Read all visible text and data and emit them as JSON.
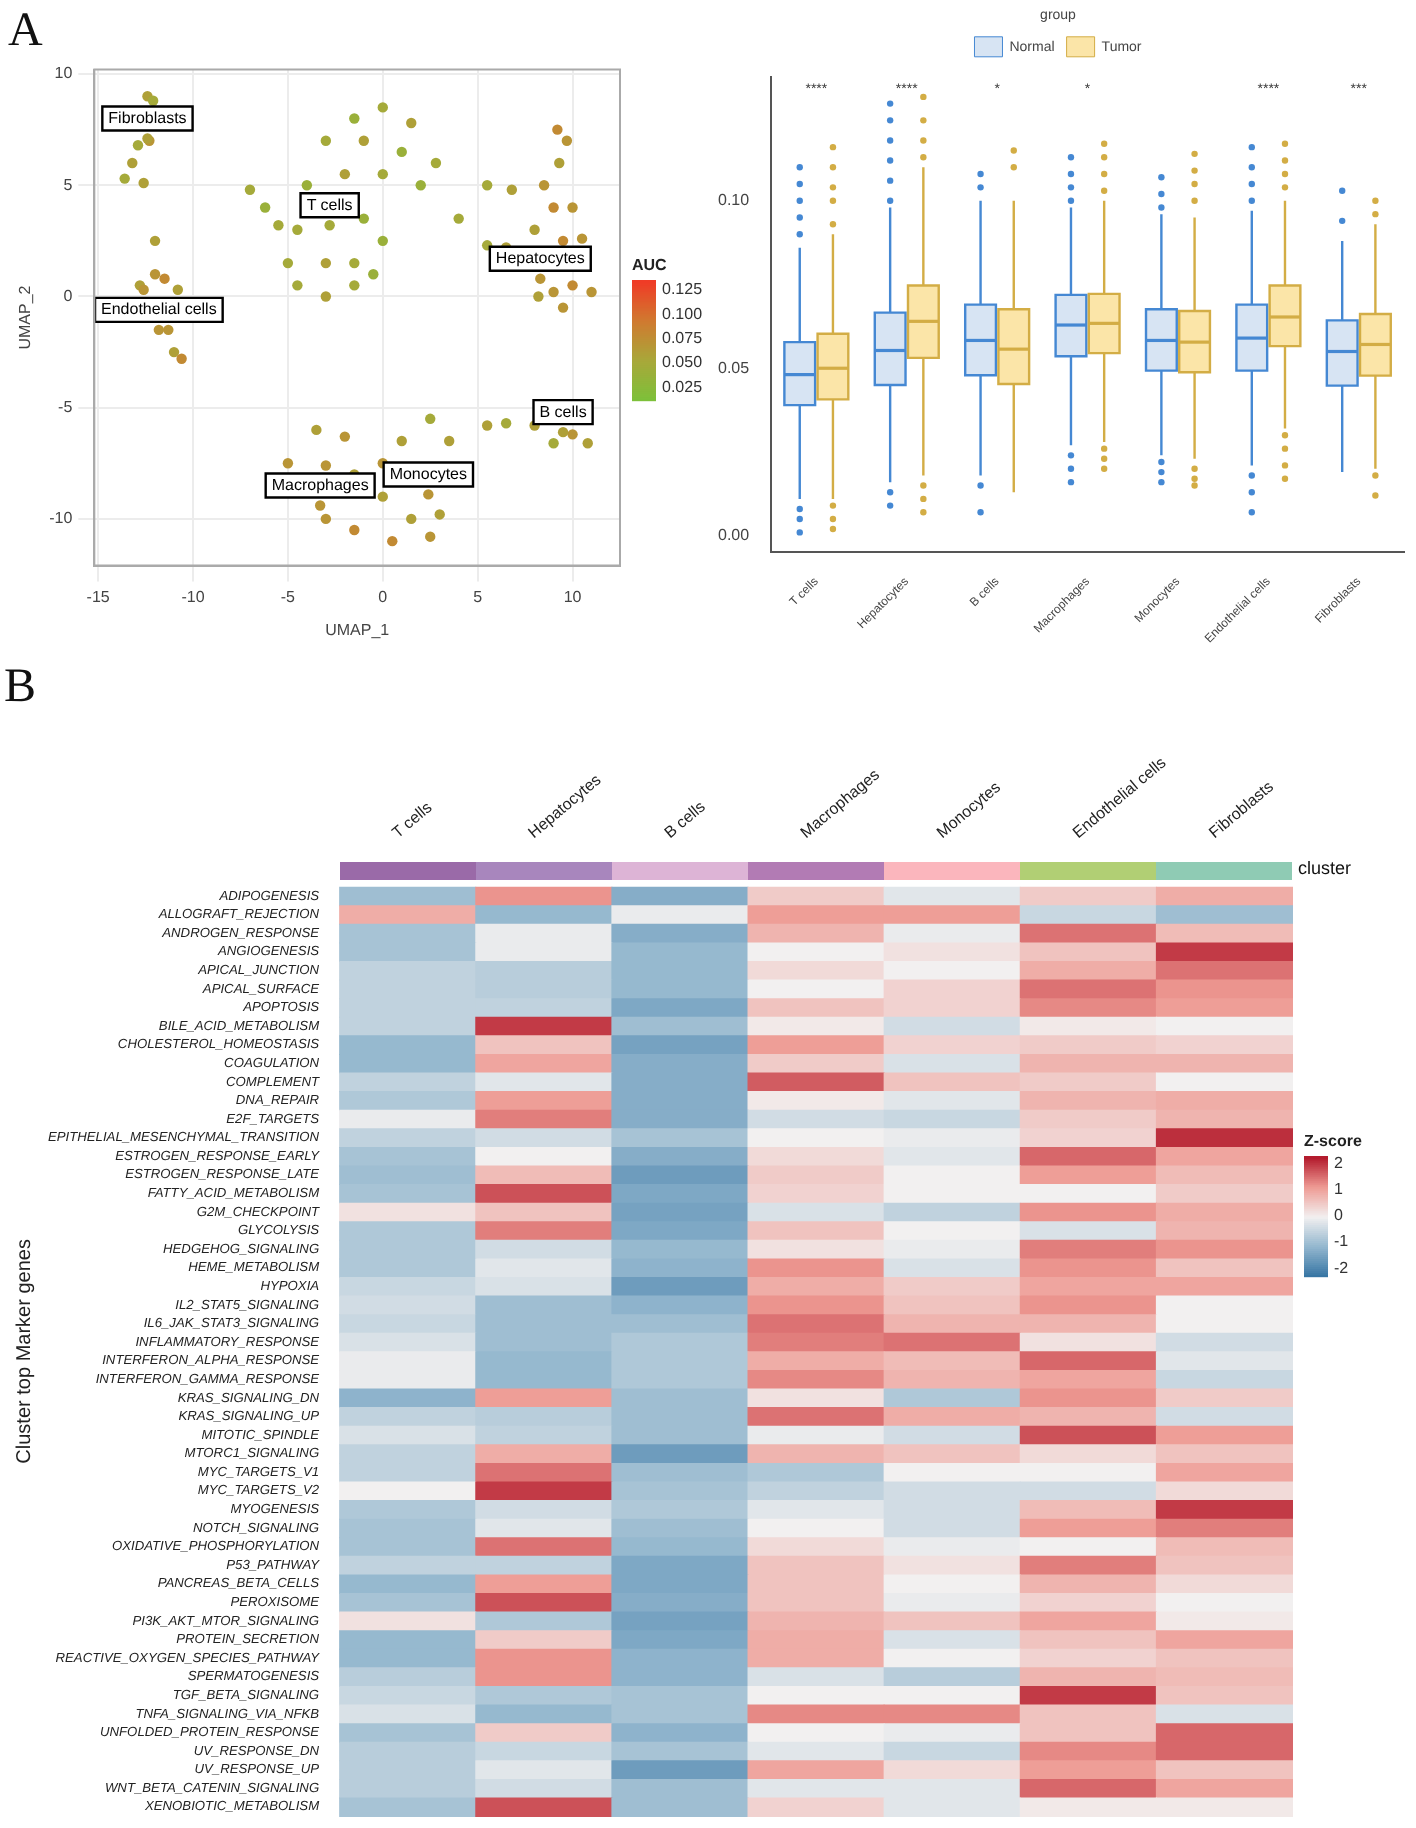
{
  "chart_data": [
    {
      "type": "scatter",
      "title": "A",
      "xlabel": "UMAP_1",
      "ylabel": "UMAP_2",
      "clabel": "AUC",
      "marker": "circle",
      "grid": true,
      "xlim": [
        -15.2,
        12.5
      ],
      "ylim": [
        -12.1,
        10.2
      ],
      "xticks": [
        -15,
        -10,
        -5,
        0,
        5,
        10
      ],
      "yticks": [
        -10,
        -5,
        0,
        5,
        10
      ],
      "clim": [
        0.012,
        0.135
      ],
      "cticks": [
        0.025,
        {
          "value": 0.05,
          "label": "0.050"
        },
        0.075,
        {
          "value": 0.1,
          "label": "0.100"
        },
        0.125
      ],
      "x": [
        -12.4,
        -12.1,
        -12.9,
        -13.2,
        -13.6,
        -12.6,
        -12.3,
        -12,
        -12,
        -12.8,
        -11.5,
        -10.8,
        -12.6,
        -11.3,
        -11,
        -10.6,
        0,
        -1.5,
        1.5,
        -3,
        -1,
        1,
        2.8,
        -4,
        -2,
        0,
        2,
        -4.5,
        -1,
        -5,
        -3,
        -1.5,
        0,
        -4.5,
        -3,
        -1.5,
        -0.5,
        -7,
        -6.2,
        -5.5,
        9.2,
        9.7,
        9.3,
        8.5,
        9,
        10,
        8,
        9.5,
        10.5,
        9.0,
        10,
        11,
        8.2,
        9.5,
        4,
        5.5,
        6.8,
        5.5,
        6.5,
        8,
        10,
        10.8,
        9,
        5.5,
        6.5,
        -5,
        -3.5,
        -2,
        -3,
        -1.5,
        -3,
        -1.5,
        0,
        0,
        1,
        2.5,
        3.5,
        1.5,
        2.5,
        3,
        0.5,
        -12.4,
        -11.8,
        -2.8,
        8.3,
        9.5,
        -3.3,
        2.4
      ],
      "values": [
        9,
        8.8,
        6.8,
        6,
        5.3,
        5.1,
        7,
        2.5,
        1,
        0.5,
        0.8,
        0.3,
        0.3,
        -1.5,
        -2.5,
        -2.8,
        8.5,
        8,
        7.8,
        7,
        7,
        6.5,
        6,
        5,
        5.5,
        5.5,
        5,
        3,
        3.5,
        1.5,
        1.5,
        1.5,
        2.5,
        0.5,
        0,
        0.5,
        1,
        4.8,
        4,
        3.2,
        7.5,
        7,
        6,
        5,
        4,
        4,
        3,
        2.5,
        2.6,
        0.2,
        0.5,
        0.2,
        0,
        -0.5,
        3.5,
        5,
        4.8,
        2.3,
        2.2,
        -5.8,
        -6.2,
        -6.6,
        -6.6,
        -5.8,
        -5.7,
        -7.5,
        -6,
        -6.3,
        -7.6,
        -8,
        -10,
        -10.5,
        -9,
        -7.5,
        -6.5,
        -5.5,
        -6.5,
        -10,
        -10.8,
        -9.8,
        -11,
        7.1,
        -1.5,
        3.2,
        0.8,
        -6.1,
        -9.4,
        -8.9
      ],
      "cvalues": [
        0.06,
        0.05,
        0.05,
        0.06,
        0.05,
        0.06,
        0.07,
        0.06,
        0.07,
        0.06,
        0.08,
        0.06,
        0.07,
        0.07,
        0.06,
        0.08,
        0.05,
        0.04,
        0.06,
        0.05,
        0.06,
        0.04,
        0.05,
        0.04,
        0.06,
        0.05,
        0.04,
        0.05,
        0.04,
        0.05,
        0.06,
        0.05,
        0.04,
        0.05,
        0.06,
        0.05,
        0.04,
        0.05,
        0.04,
        0.05,
        0.08,
        0.07,
        0.06,
        0.07,
        0.08,
        0.07,
        0.06,
        0.08,
        0.07,
        0.07,
        0.08,
        0.07,
        0.06,
        0.07,
        0.05,
        0.05,
        0.06,
        0.05,
        0.06,
        0.06,
        0.07,
        0.06,
        0.05,
        0.06,
        0.05,
        0.07,
        0.06,
        0.07,
        0.07,
        0.06,
        0.07,
        0.08,
        0.06,
        0.07,
        0.06,
        0.05,
        0.06,
        0.06,
        0.07,
        0.06,
        0.08,
        0.06,
        0.07,
        0.05,
        0.07,
        0.06,
        0.07,
        0.07
      ],
      "annotations": [
        {
          "text": "Fibroblasts",
          "x": -12.4,
          "y": 7.1
        },
        {
          "text": "Endothelial cells",
          "x": -11.8,
          "y": -1.5
        },
        {
          "text": "T cells",
          "x": -2.8,
          "y": 3.2
        },
        {
          "text": "Hepatocytes",
          "x": 8.3,
          "y": 0.8
        },
        {
          "text": "B cells",
          "x": 9.5,
          "y": -6.1
        },
        {
          "text": "Macrophages",
          "x": -3.3,
          "y": -9.4
        },
        {
          "text": "Monocytes",
          "x": 2.4,
          "y": -8.9
        }
      ]
    },
    {
      "type": "box",
      "legend": "top",
      "legend_title": "group",
      "categories": [
        "T cells",
        "Hepatocytes",
        "B cells",
        "Macrophages",
        "Monocytes",
        "Endothelial cells",
        "Fibroblasts"
      ],
      "ylim": [
        -0.005,
        0.137
      ],
      "yticks": [
        {
          "value": 0,
          "label": "0.00"
        },
        {
          "value": 0.05,
          "label": "0.05"
        },
        {
          "value": 0.1,
          "label": "0.10"
        }
      ],
      "series": [
        {
          "name": "Normal",
          "color": "#d7e4f3",
          "boxes": [
            {
              "low": 0.011,
              "q1": 0.039,
              "median": 0.0481,
              "q3": 0.0578,
              "high": 0.086,
              "outliers": [
                0.09,
                0.095,
                0.1,
                0.105,
                0.11,
                0.008,
                0.005,
                0.001
              ]
            },
            {
              "low": 0.016,
              "q1": 0.045,
              "median": 0.0553,
              "q3": 0.0666,
              "high": 0.098,
              "outliers": [
                0.1,
                0.106,
                0.112,
                0.118,
                0.124,
                0.129,
                0.013,
                0.009
              ]
            },
            {
              "low": 0.018,
              "q1": 0.0479,
              "median": 0.0583,
              "q3": 0.069,
              "high": 0.1,
              "outliers": [
                0.104,
                0.108,
                0.015,
                0.007
              ]
            },
            {
              "low": 0.027,
              "q1": 0.0536,
              "median": 0.0629,
              "q3": 0.0719,
              "high": 0.098,
              "outliers": [
                0.1,
                0.104,
                0.108,
                0.113,
                0.024,
                0.02,
                0.016
              ]
            },
            {
              "low": 0.024,
              "q1": 0.0493,
              "median": 0.0583,
              "q3": 0.0676,
              "high": 0.096,
              "outliers": [
                0.098,
                0.102,
                0.107,
                0.022,
                0.019,
                0.016
              ]
            },
            {
              "low": 0.021,
              "q1": 0.0493,
              "median": 0.059,
              "q3": 0.069,
              "high": 0.097,
              "outliers": [
                0.1,
                0.105,
                0.11,
                0.116,
                0.018,
                0.013,
                0.007
              ]
            },
            {
              "low": 0.019,
              "q1": 0.0448,
              "median": 0.055,
              "q3": 0.0643,
              "high": 0.088,
              "outliers": [
                0.094,
                0.103
              ]
            }
          ]
        },
        {
          "name": "Tumor",
          "color": "#fbe5a8",
          "boxes": [
            {
              "low": 0.011,
              "q1": 0.0407,
              "median": 0.05,
              "q3": 0.0603,
              "high": 0.09,
              "outliers": [
                0.093,
                0.1,
                0.104,
                0.11,
                0.116,
                0.009,
                0.005,
                0.002
              ]
            },
            {
              "low": 0.018,
              "q1": 0.0531,
              "median": 0.064,
              "q3": 0.0747,
              "high": 0.11,
              "outliers": [
                0.113,
                0.118,
                0.124,
                0.131,
                0.015,
                0.011,
                0.007
              ]
            },
            {
              "low": 0.013,
              "q1": 0.0453,
              "median": 0.0557,
              "q3": 0.0676,
              "high": 0.1,
              "outliers": [
                0.11,
                0.115
              ]
            },
            {
              "low": 0.028,
              "q1": 0.0545,
              "median": 0.0634,
              "q3": 0.0722,
              "high": 0.1,
              "outliers": [
                0.103,
                0.108,
                0.113,
                0.117,
                0.026,
                0.023,
                0.02
              ]
            },
            {
              "low": 0.023,
              "q1": 0.0488,
              "median": 0.0578,
              "q3": 0.0671,
              "high": 0.095,
              "outliers": [
                0.1,
                0.105,
                0.109,
                0.114,
                0.02,
                0.017,
                0.015
              ]
            },
            {
              "low": 0.032,
              "q1": 0.0566,
              "median": 0.0653,
              "q3": 0.0747,
              "high": 0.1,
              "outliers": [
                0.104,
                0.108,
                0.112,
                0.117,
                0.03,
                0.026,
                0.021,
                0.017
              ]
            },
            {
              "low": 0.02,
              "q1": 0.0478,
              "median": 0.0571,
              "q3": 0.0662,
              "high": 0.093,
              "outliers": [
                0.096,
                0.1,
                0.018,
                0.012
              ]
            }
          ]
        }
      ],
      "annotations": [
        "****",
        "****",
        "*",
        "*",
        "****",
        "***"
      ]
    },
    {
      "type": "heatmap",
      "title": "B",
      "ylabel": "Cluster top Marker genes",
      "clabel": "Z-score",
      "annotations": [
        "cluster"
      ],
      "clim": [
        -2.3,
        2.3
      ],
      "cticks": [
        -2,
        -1,
        0,
        1,
        2
      ],
      "categories": [
        "T cells",
        "Hepatocytes",
        "B cells",
        "Macrophages",
        "Monocytes",
        "Endothelial cells",
        "Fibroblasts"
      ],
      "y_categories": [
        "ADIPOGENESIS",
        "ALLOGRAFT_REJECTION",
        "ANDROGEN_RESPONSE",
        "ANGIOGENESIS",
        "APICAL_JUNCTION",
        "APICAL_SURFACE",
        "APOPTOSIS",
        "BILE_ACID_METABOLISM",
        "CHOLESTEROL_HOMEOSTASIS",
        "COAGULATION",
        "COMPLEMENT",
        "DNA_REPAIR",
        "E2F_TARGETS",
        "EPITHELIAL_MESENCHYMAL_TRANSITION",
        "ESTROGEN_RESPONSE_EARLY",
        "ESTROGEN_RESPONSE_LATE",
        "FATTY_ACID_METABOLISM",
        "G2M_CHECKPOINT",
        "GLYCOLYSIS",
        "HEDGEHOG_SIGNALING",
        "HEME_METABOLISM",
        "HYPOXIA",
        "IL2_STAT5_SIGNALING",
        "IL6_JAK_STAT3_SIGNALING",
        "INFLAMMATORY_RESPONSE",
        "INTERFERON_ALPHA_RESPONSE",
        "INTERFERON_GAMMA_RESPONSE",
        "KRAS_SIGNALING_DN",
        "KRAS_SIGNALING_UP",
        "MITOTIC_SPINDLE",
        "MTORC1_SIGNALING",
        "MYC_TARGETS_V1",
        "MYC_TARGETS_V2",
        "MYOGENESIS",
        "NOTCH_SIGNALING",
        "OXIDATIVE_PHOSPHORYLATION",
        "P53_PATHWAY",
        "PANCREAS_BETA_CELLS",
        "PEROXISOME",
        "PI3K_AKT_MTOR_SIGNALING",
        "PROTEIN_SECRETION",
        "REACTIVE_OXYGEN_SPECIES_PATHWAY",
        "SPERMATOGENESIS",
        "TGF_BETA_SIGNALING",
        "TNFA_SIGNALING_VIA_NFKB",
        "UNFOLDED_PROTEIN_RESPONSE",
        "UV_RESPONSE_DN",
        "UV_RESPONSE_UP",
        "WNT_BETA_CATENIN_SIGNALING",
        "XENOBIOTIC_METABOLISM"
      ],
      "cells": [
        [
          -1.0,
          1.2,
          -1.3,
          0.5,
          -0.2,
          0.5,
          0.9
        ],
        [
          0.9,
          -1.1,
          -0.1,
          1.1,
          1.1,
          -0.5,
          -1.0
        ],
        [
          -0.9,
          -0.1,
          -1.3,
          0.8,
          -0.1,
          1.5,
          0.7
        ],
        [
          -0.9,
          -0.1,
          -1.1,
          0.0,
          0.2,
          0.6,
          2.0
        ],
        [
          -0.6,
          -0.7,
          -1.1,
          0.3,
          0.0,
          0.9,
          1.5
        ],
        [
          -0.6,
          -0.7,
          -1.1,
          0.0,
          0.4,
          1.5,
          1.2
        ],
        [
          -0.6,
          -0.6,
          -1.4,
          0.6,
          0.4,
          1.3,
          1.1
        ],
        [
          -0.6,
          2.0,
          -1.0,
          0.1,
          -0.4,
          0.1,
          0.0
        ],
        [
          -1.1,
          0.6,
          -1.5,
          1.1,
          0.4,
          0.5,
          0.4
        ],
        [
          -1.1,
          1.0,
          -1.3,
          0.5,
          -0.3,
          0.8,
          0.8
        ],
        [
          -0.6,
          -0.2,
          -1.3,
          1.7,
          0.6,
          0.5,
          0.0
        ],
        [
          -0.8,
          1.1,
          -1.3,
          0.1,
          -0.2,
          0.8,
          0.9
        ],
        [
          -0.1,
          1.4,
          -1.3,
          -0.4,
          -0.5,
          0.5,
          0.8
        ],
        [
          -0.6,
          -0.4,
          -0.9,
          0.0,
          -0.1,
          0.4,
          2.1
        ],
        [
          -0.9,
          0.0,
          -1.3,
          0.3,
          -0.2,
          1.6,
          1.0
        ],
        [
          -1.0,
          0.7,
          -1.6,
          0.5,
          0.0,
          1.1,
          0.7
        ],
        [
          -0.9,
          1.8,
          -1.4,
          0.4,
          0.0,
          0.0,
          0.5
        ],
        [
          0.2,
          0.6,
          -1.5,
          -0.3,
          -0.6,
          1.2,
          0.9
        ],
        [
          -0.8,
          1.4,
          -1.4,
          0.6,
          0.0,
          -0.3,
          0.8
        ],
        [
          -0.8,
          -0.4,
          -1.1,
          0.2,
          -0.1,
          1.4,
          1.2
        ],
        [
          -0.8,
          -0.2,
          -1.2,
          1.2,
          -0.3,
          1.2,
          0.6
        ],
        [
          -0.5,
          -0.3,
          -1.6,
          0.9,
          0.5,
          1.0,
          1.0
        ],
        [
          -0.4,
          -1.0,
          -1.2,
          1.2,
          0.6,
          1.2,
          0.0
        ],
        [
          -0.5,
          -1.0,
          -1.0,
          1.5,
          0.8,
          0.8,
          0.0
        ],
        [
          -0.3,
          -1.0,
          -0.8,
          1.4,
          1.5,
          0.2,
          -0.4
        ],
        [
          -0.1,
          -1.1,
          -0.8,
          0.9,
          0.7,
          1.6,
          -0.2
        ],
        [
          -0.1,
          -1.1,
          -0.8,
          1.3,
          0.8,
          1.0,
          -0.5
        ],
        [
          -1.2,
          1.1,
          -1.0,
          0.2,
          -0.8,
          1.2,
          0.5
        ],
        [
          -0.6,
          -0.7,
          -1.0,
          1.5,
          0.9,
          0.8,
          -0.4
        ],
        [
          -0.3,
          -0.6,
          -1.0,
          -0.1,
          -0.4,
          1.8,
          1.1
        ],
        [
          -0.6,
          0.9,
          -1.6,
          0.8,
          0.6,
          0.3,
          0.6
        ],
        [
          -0.6,
          1.5,
          -1.0,
          -0.8,
          0.0,
          0.0,
          1.0
        ],
        [
          0.0,
          2.0,
          -0.9,
          -0.6,
          -0.4,
          -0.4,
          0.3
        ],
        [
          -0.8,
          -0.4,
          -0.8,
          -0.2,
          -0.4,
          0.7,
          2.0
        ],
        [
          -0.9,
          -0.2,
          -1.0,
          0.0,
          -0.4,
          1.1,
          1.4
        ],
        [
          -0.9,
          1.5,
          -1.1,
          0.3,
          -0.1,
          0.0,
          0.7
        ],
        [
          -0.6,
          -0.6,
          -1.4,
          0.6,
          0.2,
          1.4,
          0.6
        ],
        [
          -1.1,
          1.1,
          -1.4,
          0.6,
          0.0,
          0.8,
          0.3
        ],
        [
          -0.9,
          1.8,
          -1.3,
          0.6,
          -0.1,
          0.4,
          0.0
        ],
        [
          0.2,
          -0.8,
          -1.5,
          0.8,
          0.6,
          1.0,
          0.1
        ],
        [
          -1.1,
          0.5,
          -1.4,
          0.9,
          -0.3,
          0.6,
          1.0
        ],
        [
          -1.1,
          1.2,
          -1.2,
          0.9,
          0.0,
          0.4,
          0.6
        ],
        [
          -0.7,
          1.2,
          -1.2,
          -0.3,
          -0.7,
          0.8,
          0.7
        ],
        [
          -0.5,
          -0.8,
          -0.9,
          0.0,
          0.0,
          2.0,
          0.6
        ],
        [
          -0.3,
          -1.1,
          -0.9,
          1.3,
          1.3,
          0.6,
          -0.3
        ],
        [
          -0.9,
          0.5,
          -1.2,
          0.0,
          -0.1,
          0.6,
          1.6
        ],
        [
          -0.7,
          -0.5,
          -0.9,
          -0.2,
          -0.5,
          1.3,
          1.6
        ],
        [
          -0.7,
          -0.2,
          -1.6,
          1.0,
          0.3,
          1.1,
          0.6
        ],
        [
          -0.7,
          -0.4,
          -1.0,
          -0.2,
          -0.2,
          1.6,
          1.0
        ],
        [
          -0.9,
          1.8,
          -1.0,
          0.4,
          -0.2,
          0.1,
          0.1
        ]
      ]
    }
  ]
}
